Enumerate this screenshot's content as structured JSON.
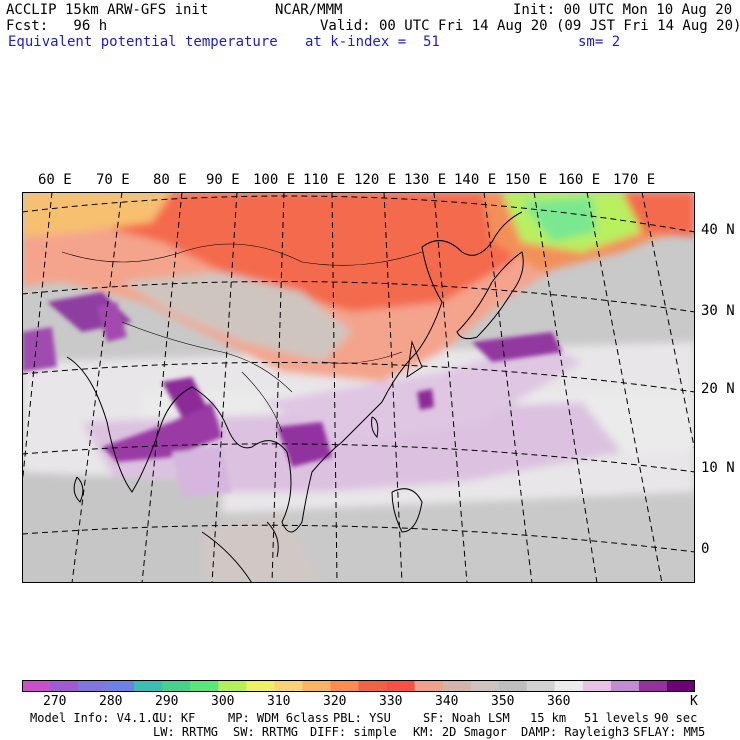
{
  "header": {
    "model": "ACCLIP 15km ARW-GFS init",
    "center": "NCAR/MMM",
    "init": "Init: 00 UTC Mon 10 Aug 20",
    "fcst": "Fcst:   96 h",
    "valid": "Valid: 00 UTC Fri 14 Aug 20 (09 JST Fri 14 Aug 20)",
    "field": "Equivalent potential temperature",
    "level": "at k-index =  51",
    "smooth": "sm= 2"
  },
  "map": {
    "lon_labels": [
      "60 E",
      "70 E",
      "80 E",
      "90 E",
      "100 E",
      "110 E",
      "120 E",
      "130 E",
      "140 E",
      "150 E",
      "160 E",
      "170 E"
    ],
    "lat_labels": [
      "40 N",
      "30 N",
      "20 N",
      "10 N",
      "0"
    ]
  },
  "colorbar": {
    "colors": [
      "#c850c8",
      "#a05ad2",
      "#8278dc",
      "#6e82e6",
      "#3cbeb4",
      "#46d28c",
      "#5ae678",
      "#b4f05a",
      "#f0f064",
      "#fad278",
      "#fab464",
      "#fa8c50",
      "#f06446",
      "#fa5046",
      "#f0a08c",
      "#d2b4aa",
      "#cdc3be",
      "#bebebe",
      "#d2d2d2",
      "#ebebeb",
      "#e6c3e6",
      "#c38cd2",
      "#9632a0",
      "#6e0078"
    ],
    "labels": [
      "270",
      "280",
      "290",
      "300",
      "310",
      "320",
      "330",
      "340",
      "350",
      "360"
    ],
    "unit": "K"
  },
  "footer": {
    "line1": [
      "Model Info: V4.1.1",
      "CU: KF",
      "MP: WDM 6class",
      "PBL: YSU",
      "SF: Noah LSM",
      "15 km",
      "51 levels",
      "90 sec"
    ],
    "line2": [
      "LW: RRTMG",
      "SW: RRTMG",
      "DIFF: simple",
      "KM: 2D Smagor",
      "DAMP: Rayleigh3",
      "SFLAY: MM5"
    ]
  }
}
